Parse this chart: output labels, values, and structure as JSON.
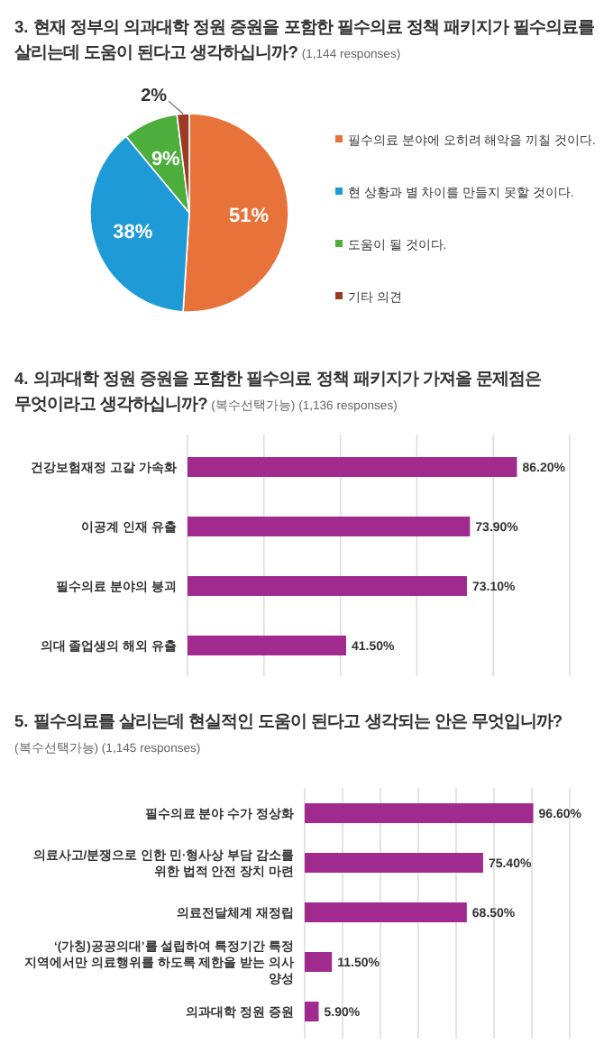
{
  "chart_data": [
    {
      "type": "pie",
      "title": "3. 현재 정부의 의과대학 정원 증원을 포함한 필수의료 정책 패키지가 필수의료를 살리는데 도움이 된다고 생각하십니까?",
      "subtitle": "(1,144 responses)",
      "categories": [
        "필수의료 분야에 오히려 해악을 끼칠 것이다.",
        "현 상황과 별 차이를 만들지 못할 것이다.",
        "도움이 될 것이다.",
        "기타 의견"
      ],
      "values": [
        51,
        38,
        9,
        2
      ],
      "colors": [
        "#e8733a",
        "#1e9bd7",
        "#4dae3c",
        "#9b3a25"
      ],
      "value_labels": [
        "51%",
        "38%",
        "9%",
        "2%"
      ],
      "legend": "right"
    },
    {
      "type": "bar",
      "orientation": "horizontal",
      "title": "4. 의과대학 정원 증원을 포함한 필수의료 정책 패키지가 가져올 문제점은 무엇이라고 생각하십니까?",
      "subtitle": "(복수선택가능) (1,136 responses)",
      "categories": [
        "건강보험재정 고갈 가속화",
        "이공계 인재 유출",
        "필수의료 분야의 붕괴",
        "의대 졸업생의 해외 유출"
      ],
      "values": [
        86.2,
        73.9,
        73.1,
        41.5
      ],
      "color": "#a12a8f",
      "value_labels": [
        "86.20%",
        "73.90%",
        "73.10%",
        "41.50%"
      ],
      "xlim": [
        0,
        100
      ],
      "xticks": [
        {
          "value": 0,
          "label": null
        },
        {
          "value": 20,
          "label": null
        },
        {
          "value": 40,
          "label": null
        },
        {
          "value": 60,
          "label": null
        },
        {
          "value": 80,
          "label": null
        },
        {
          "value": 100,
          "label": null
        }
      ],
      "grid": "x",
      "tick_labels": "y"
    },
    {
      "type": "bar",
      "orientation": "horizontal",
      "title": "5. 필수의료를 살리는데 현실적인 도움이 된다고 생각되는 안은 무엇입니까?",
      "subtitle": "(복수선택가능) (1,145 responses)",
      "categories": [
        "필수의료 분야 수가 정상화",
        "의료사고/분쟁으로 인한 민·형사상 부담 감소를 위한 법적 안전 장치 마련",
        "의료전달체계 재정립",
        "‘(가칭)공공의대’를 설립하여 특정기간 특정 지역에서만 의료행위를 하도록 제한을 받는 의사 양성",
        "의과대학 정원 증원"
      ],
      "values": [
        96.6,
        75.4,
        68.5,
        11.5,
        5.9
      ],
      "color": "#a12a8f",
      "value_labels": [
        "96.60%",
        "75.40%",
        "68.50%",
        "11.50%",
        "5.90%"
      ],
      "xlim": [
        0,
        112
      ],
      "xticks": [
        {
          "value": 0,
          "label": null
        },
        {
          "value": 16,
          "label": null
        },
        {
          "value": 32,
          "label": null
        },
        {
          "value": 48,
          "label": null
        },
        {
          "value": 64,
          "label": null
        },
        {
          "value": 80,
          "label": null
        },
        {
          "value": 96,
          "label": null
        },
        {
          "value": 112,
          "label": null
        }
      ],
      "grid": "x",
      "tick_labels": "y"
    }
  ]
}
